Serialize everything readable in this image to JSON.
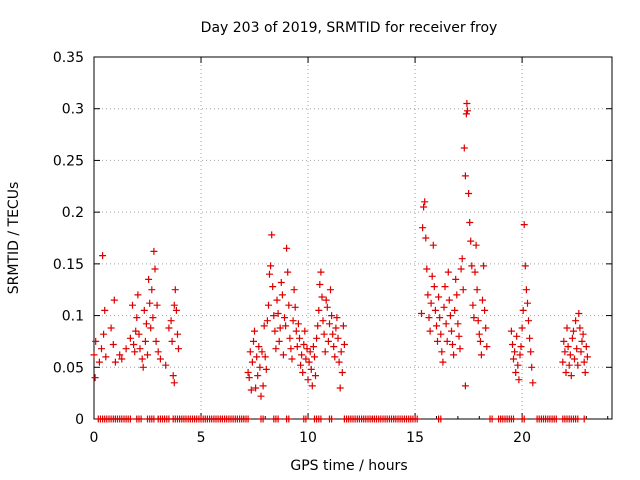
{
  "chart_data": {
    "type": "scatter",
    "title": "Day 203 of 2019, SRMTID for receiver froy",
    "xlabel": "GPS time / hours",
    "ylabel": "SRMTID / TECUs",
    "xlim": [
      0,
      24.2
    ],
    "ylim": [
      0,
      0.35
    ],
    "x_ticks": [
      0,
      5,
      10,
      15,
      20
    ],
    "x_tick_labels": [
      "0",
      "5",
      "10",
      "15",
      "20"
    ],
    "y_ticks": [
      0,
      0.05,
      0.1,
      0.15,
      0.2,
      0.25,
      0.3,
      0.35
    ],
    "y_tick_labels": [
      "0",
      "0.05",
      "0.1",
      "0.15",
      "0.2",
      "0.25",
      "0.3",
      "0.35"
    ],
    "grid": true,
    "marker": "+",
    "marker_color": "#dd0000",
    "series": [
      {
        "name": "SRMTID",
        "points": [
          [
            0.0,
            0.062
          ],
          [
            0.05,
            0.04
          ],
          [
            0.08,
            0.075
          ],
          [
            0.25,
            0.055
          ],
          [
            0.35,
            0.068
          ],
          [
            0.4,
            0.158
          ],
          [
            0.45,
            0.082
          ],
          [
            0.5,
            0.105
          ],
          [
            0.55,
            0.06
          ],
          [
            0.8,
            0.088
          ],
          [
            0.9,
            0.072
          ],
          [
            0.95,
            0.115
          ],
          [
            1.0,
            0.055
          ],
          [
            1.2,
            0.062
          ],
          [
            1.3,
            0.058
          ],
          [
            1.5,
            0.068
          ],
          [
            1.7,
            0.078
          ],
          [
            1.8,
            0.11
          ],
          [
            1.85,
            0.072
          ],
          [
            1.9,
            0.065
          ],
          [
            1.95,
            0.085
          ],
          [
            2.0,
            0.098
          ],
          [
            2.05,
            0.12
          ],
          [
            2.1,
            0.082
          ],
          [
            2.15,
            0.068
          ],
          [
            2.25,
            0.058
          ],
          [
            2.3,
            0.05
          ],
          [
            2.35,
            0.105
          ],
          [
            2.4,
            0.075
          ],
          [
            2.45,
            0.092
          ],
          [
            2.5,
            0.062
          ],
          [
            2.55,
            0.135
          ],
          [
            2.6,
            0.112
          ],
          [
            2.65,
            0.088
          ],
          [
            2.7,
            0.125
          ],
          [
            2.75,
            0.098
          ],
          [
            2.8,
            0.162
          ],
          [
            2.85,
            0.145
          ],
          [
            2.9,
            0.075
          ],
          [
            2.95,
            0.11
          ],
          [
            3.0,
            0.065
          ],
          [
            3.1,
            0.058
          ],
          [
            3.35,
            0.052
          ],
          [
            3.5,
            0.088
          ],
          [
            3.6,
            0.095
          ],
          [
            3.65,
            0.075
          ],
          [
            3.7,
            0.042
          ],
          [
            3.75,
            0.11
          ],
          [
            3.8,
            0.125
          ],
          [
            3.85,
            0.105
          ],
          [
            3.9,
            0.082
          ],
          [
            3.95,
            0.068
          ],
          [
            3.75,
            0.035
          ],
          [
            7.2,
            0.045
          ],
          [
            7.25,
            0.04
          ],
          [
            7.3,
            0.065
          ],
          [
            7.35,
            0.028
          ],
          [
            7.4,
            0.055
          ],
          [
            7.45,
            0.075
          ],
          [
            7.5,
            0.085
          ],
          [
            7.55,
            0.03
          ],
          [
            7.6,
            0.06
          ],
          [
            7.65,
            0.042
          ],
          [
            7.7,
            0.07
          ],
          [
            7.75,
            0.05
          ],
          [
            7.8,
            0.022
          ],
          [
            7.85,
            0.065
          ],
          [
            7.9,
            0.032
          ],
          [
            7.95,
            0.09
          ],
          [
            8.0,
            0.06
          ],
          [
            8.05,
            0.048
          ],
          [
            8.1,
            0.095
          ],
          [
            8.15,
            0.11
          ],
          [
            8.2,
            0.14
          ],
          [
            8.25,
            0.148
          ],
          [
            8.3,
            0.178
          ],
          [
            8.35,
            0.128
          ],
          [
            8.4,
            0.1
          ],
          [
            8.45,
            0.085
          ],
          [
            8.5,
            0.068
          ],
          [
            8.55,
            0.115
          ],
          [
            8.6,
            0.102
          ],
          [
            8.65,
            0.075
          ],
          [
            8.7,
            0.088
          ],
          [
            8.75,
            0.132
          ],
          [
            8.8,
            0.12
          ],
          [
            8.85,
            0.062
          ],
          [
            8.9,
            0.098
          ],
          [
            8.95,
            0.09
          ],
          [
            9.0,
            0.165
          ],
          [
            9.05,
            0.142
          ],
          [
            9.1,
            0.11
          ],
          [
            9.15,
            0.078
          ],
          [
            9.2,
            0.068
          ],
          [
            9.25,
            0.058
          ],
          [
            9.3,
            0.095
          ],
          [
            9.35,
            0.125
          ],
          [
            9.4,
            0.108
          ],
          [
            9.45,
            0.085
          ],
          [
            9.5,
            0.07
          ],
          [
            9.55,
            0.092
          ],
          [
            9.6,
            0.078
          ],
          [
            9.65,
            0.052
          ],
          [
            9.7,
            0.062
          ],
          [
            9.75,
            0.045
          ],
          [
            9.8,
            0.072
          ],
          [
            9.85,
            0.085
          ],
          [
            9.9,
            0.058
          ],
          [
            9.95,
            0.068
          ],
          [
            10.0,
            0.038
          ],
          [
            10.05,
            0.055
          ],
          [
            10.1,
            0.065
          ],
          [
            10.15,
            0.048
          ],
          [
            10.2,
            0.032
          ],
          [
            10.25,
            0.07
          ],
          [
            10.3,
            0.06
          ],
          [
            10.35,
            0.042
          ],
          [
            10.4,
            0.078
          ],
          [
            10.45,
            0.09
          ],
          [
            10.5,
            0.105
          ],
          [
            10.55,
            0.13
          ],
          [
            10.6,
            0.142
          ],
          [
            10.65,
            0.118
          ],
          [
            10.7,
            0.095
          ],
          [
            10.75,
            0.082
          ],
          [
            10.8,
            0.065
          ],
          [
            10.85,
            0.115
          ],
          [
            10.9,
            0.108
          ],
          [
            10.95,
            0.075
          ],
          [
            11.0,
            0.092
          ],
          [
            11.05,
            0.125
          ],
          [
            11.1,
            0.1
          ],
          [
            11.15,
            0.082
          ],
          [
            11.2,
            0.07
          ],
          [
            11.25,
            0.06
          ],
          [
            11.3,
            0.088
          ],
          [
            11.35,
            0.098
          ],
          [
            11.4,
            0.078
          ],
          [
            11.45,
            0.055
          ],
          [
            11.5,
            0.03
          ],
          [
            11.55,
            0.065
          ],
          [
            11.6,
            0.045
          ],
          [
            11.65,
            0.09
          ],
          [
            11.7,
            0.072
          ],
          [
            15.3,
            0.102
          ],
          [
            15.35,
            0.185
          ],
          [
            15.4,
            0.205
          ],
          [
            15.45,
            0.21
          ],
          [
            15.5,
            0.175
          ],
          [
            15.55,
            0.145
          ],
          [
            15.6,
            0.12
          ],
          [
            15.65,
            0.098
          ],
          [
            15.7,
            0.085
          ],
          [
            15.75,
            0.112
          ],
          [
            15.8,
            0.138
          ],
          [
            15.85,
            0.168
          ],
          [
            15.9,
            0.128
          ],
          [
            15.95,
            0.105
          ],
          [
            16.0,
            0.09
          ],
          [
            16.05,
            0.075
          ],
          [
            16.1,
            0.118
          ],
          [
            16.15,
            0.098
          ],
          [
            16.2,
            0.082
          ],
          [
            16.25,
            0.065
          ],
          [
            16.3,
            0.055
          ],
          [
            16.35,
            0.108
          ],
          [
            16.4,
            0.128
          ],
          [
            16.45,
            0.092
          ],
          [
            16.5,
            0.075
          ],
          [
            16.55,
            0.142
          ],
          [
            16.6,
            0.115
          ],
          [
            16.65,
            0.1
          ],
          [
            16.7,
            0.085
          ],
          [
            16.75,
            0.072
          ],
          [
            16.8,
            0.062
          ],
          [
            16.85,
            0.105
          ],
          [
            16.9,
            0.135
          ],
          [
            16.95,
            0.12
          ],
          [
            17.0,
            0.092
          ],
          [
            17.05,
            0.08
          ],
          [
            17.1,
            0.068
          ],
          [
            17.15,
            0.145
          ],
          [
            17.2,
            0.155
          ],
          [
            17.25,
            0.125
          ],
          [
            17.3,
            0.262
          ],
          [
            17.35,
            0.235
          ],
          [
            17.4,
            0.295
          ],
          [
            17.42,
            0.305
          ],
          [
            17.45,
            0.298
          ],
          [
            17.5,
            0.218
          ],
          [
            17.55,
            0.19
          ],
          [
            17.6,
            0.172
          ],
          [
            17.65,
            0.148
          ],
          [
            17.7,
            0.11
          ],
          [
            17.75,
            0.098
          ],
          [
            17.8,
            0.142
          ],
          [
            17.85,
            0.168
          ],
          [
            17.9,
            0.125
          ],
          [
            17.95,
            0.095
          ],
          [
            18.0,
            0.082
          ],
          [
            18.05,
            0.075
          ],
          [
            18.1,
            0.062
          ],
          [
            18.15,
            0.115
          ],
          [
            18.2,
            0.148
          ],
          [
            18.25,
            0.105
          ],
          [
            18.3,
            0.088
          ],
          [
            18.35,
            0.07
          ],
          [
            17.35,
            0.032
          ],
          [
            19.5,
            0.085
          ],
          [
            19.55,
            0.072
          ],
          [
            19.6,
            0.058
          ],
          [
            19.65,
            0.065
          ],
          [
            19.7,
            0.045
          ],
          [
            19.75,
            0.08
          ],
          [
            19.8,
            0.052
          ],
          [
            19.85,
            0.038
          ],
          [
            19.9,
            0.062
          ],
          [
            19.95,
            0.07
          ],
          [
            20.0,
            0.088
          ],
          [
            20.05,
            0.105
          ],
          [
            20.1,
            0.188
          ],
          [
            20.15,
            0.148
          ],
          [
            20.2,
            0.125
          ],
          [
            20.25,
            0.112
          ],
          [
            20.3,
            0.095
          ],
          [
            20.35,
            0.078
          ],
          [
            20.4,
            0.065
          ],
          [
            20.45,
            0.05
          ],
          [
            20.5,
            0.035
          ],
          [
            21.9,
            0.055
          ],
          [
            21.95,
            0.075
          ],
          [
            22.0,
            0.065
          ],
          [
            22.05,
            0.045
          ],
          [
            22.1,
            0.088
          ],
          [
            22.15,
            0.07
          ],
          [
            22.2,
            0.052
          ],
          [
            22.25,
            0.062
          ],
          [
            22.3,
            0.042
          ],
          [
            22.35,
            0.078
          ],
          [
            22.4,
            0.085
          ],
          [
            22.45,
            0.058
          ],
          [
            22.5,
            0.095
          ],
          [
            22.55,
            0.068
          ],
          [
            22.6,
            0.052
          ],
          [
            22.65,
            0.102
          ],
          [
            22.7,
            0.088
          ],
          [
            22.75,
            0.065
          ],
          [
            22.8,
            0.075
          ],
          [
            22.85,
            0.082
          ],
          [
            22.9,
            0.055
          ],
          [
            22.95,
            0.045
          ],
          [
            23.0,
            0.07
          ],
          [
            23.05,
            0.06
          ]
        ],
        "zero_points_x": [
          0.2,
          0.3,
          0.4,
          0.5,
          0.6,
          0.7,
          0.8,
          0.9,
          1.0,
          1.1,
          1.2,
          1.3,
          1.4,
          1.5,
          1.6,
          1.7,
          2.0,
          2.1,
          2.2,
          2.5,
          2.6,
          2.7,
          2.8,
          3.0,
          3.1,
          3.2,
          3.3,
          3.4,
          3.5,
          3.7,
          3.8,
          3.9,
          4.0,
          4.1,
          4.2,
          4.3,
          4.4,
          4.5,
          4.6,
          4.7,
          4.8,
          4.9,
          5.0,
          5.1,
          5.2,
          5.3,
          5.4,
          5.5,
          5.6,
          5.7,
          5.8,
          5.9,
          6.0,
          6.1,
          6.2,
          6.3,
          6.4,
          6.5,
          6.6,
          6.7,
          6.8,
          6.9,
          7.0,
          7.1,
          7.2,
          7.8,
          7.9,
          8.4,
          8.5,
          8.6,
          9.0,
          9.1,
          9.8,
          9.9,
          10.3,
          10.4,
          10.5,
          10.6,
          11.0,
          11.1,
          11.7,
          11.8,
          11.9,
          12.0,
          12.1,
          12.2,
          12.3,
          12.4,
          12.5,
          12.6,
          12.7,
          12.8,
          12.9,
          13.0,
          13.1,
          13.2,
          13.3,
          13.4,
          13.5,
          13.6,
          13.7,
          13.8,
          13.9,
          14.0,
          14.1,
          14.2,
          14.3,
          14.4,
          14.5,
          14.6,
          14.7,
          14.8,
          14.9,
          15.0,
          15.1,
          16.1,
          16.2,
          18.5,
          18.6,
          18.9,
          19.0,
          19.1,
          19.2,
          19.3,
          19.4,
          19.5,
          19.6,
          20.0,
          20.1,
          20.7,
          20.8,
          20.9,
          21.0,
          21.1,
          21.2,
          21.3,
          21.4,
          21.5,
          21.6,
          21.9,
          22.0,
          22.1,
          22.2,
          22.3,
          22.4,
          22.5,
          22.6,
          22.9
        ]
      }
    ]
  }
}
